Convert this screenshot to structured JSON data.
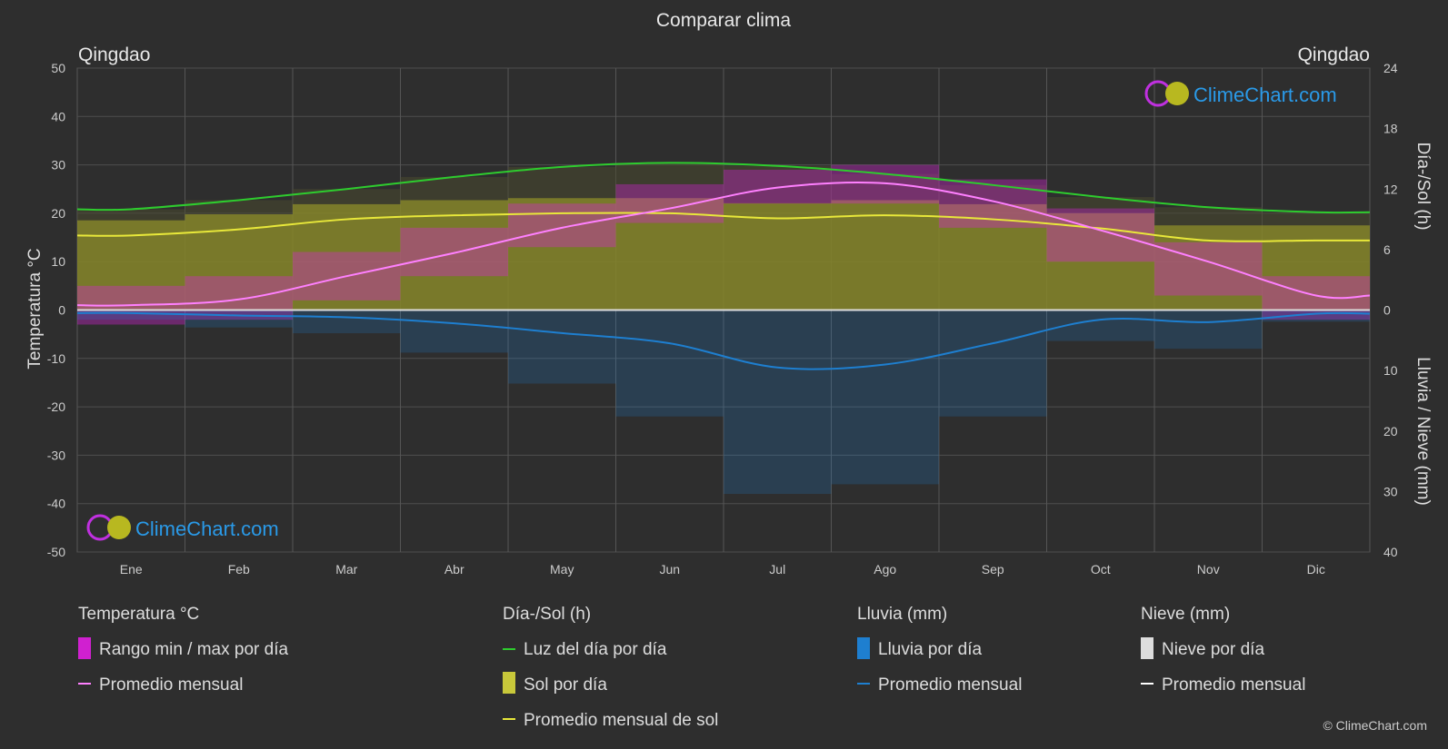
{
  "title": "Comparar clima",
  "location_left": "Qingdao",
  "location_right": "Qingdao",
  "watermark": "ClimeChart.com",
  "copyright": "© ClimeChart.com",
  "axes": {
    "left_label": "Temperatura °C",
    "right_top_label": "Día-/Sol (h)",
    "right_bottom_label": "Lluvia / Nieve (mm)",
    "left_ticks": [
      "50",
      "40",
      "30",
      "20",
      "10",
      "0",
      "-10",
      "-20",
      "-30",
      "-40",
      "-50"
    ],
    "right_top_ticks": [
      "24",
      "18",
      "12",
      "6",
      "0"
    ],
    "right_bottom_ticks": [
      "0",
      "10",
      "20",
      "30",
      "40"
    ]
  },
  "legend": {
    "temp": {
      "header": "Temperatura °C",
      "range": "Rango min / max por día",
      "avg": "Promedio mensual"
    },
    "sun": {
      "header": "Día-/Sol (h)",
      "daylight": "Luz del día por día",
      "sun": "Sol por día",
      "avg": "Promedio mensual de sol"
    },
    "rain": {
      "header": "Lluvia (mm)",
      "rain": "Lluvia por día",
      "avg": "Promedio mensual"
    },
    "snow": {
      "header": "Nieve (mm)",
      "snow": "Nieve por día",
      "avg": "Promedio mensual"
    }
  },
  "colors": {
    "temp_range": "#e020e0",
    "temp_avg": "#ff80ff",
    "daylight": "#2ecc2e",
    "sun_fill": "#8e8e2a",
    "sun_avg": "#e8e83a",
    "rain": "#1e7fd0",
    "snow": "#dddddd"
  },
  "chart_data": {
    "type": "line",
    "months": [
      "Ene",
      "Feb",
      "Mar",
      "Abr",
      "May",
      "Jun",
      "Jul",
      "Ago",
      "Sep",
      "Oct",
      "Nov",
      "Dic"
    ],
    "temp_ylim": [
      -50,
      50
    ],
    "sun_ylim": [
      0,
      24
    ],
    "precip_ylim": [
      0,
      40
    ],
    "series": [
      {
        "name": "Promedio mensual",
        "axis": "temperature",
        "values": [
          1.0,
          2.2,
          7.0,
          11.8,
          17.0,
          21.0,
          25.3,
          26.2,
          22.5,
          16.5,
          10.0,
          3.0
        ]
      },
      {
        "name": "Luz del día por día",
        "axis": "hours",
        "values": [
          10.0,
          10.9,
          12.0,
          13.2,
          14.2,
          14.6,
          14.3,
          13.5,
          12.4,
          11.2,
          10.2,
          9.7
        ]
      },
      {
        "name": "Promedio mensual de sol",
        "axis": "hours",
        "values": [
          7.4,
          8.0,
          9.0,
          9.4,
          9.6,
          9.6,
          9.1,
          9.4,
          9.0,
          8.1,
          6.9,
          6.9
        ]
      },
      {
        "name": "Promedio mensual",
        "axis": "precipitation",
        "values": [
          0.5,
          0.9,
          1.2,
          2.2,
          3.8,
          5.5,
          9.5,
          9.0,
          5.5,
          1.6,
          2.0,
          0.6
        ]
      }
    ],
    "temp_daily_range": {
      "min": [
        -3,
        -2,
        2,
        7,
        13,
        18,
        22,
        22,
        17,
        10,
        3,
        -2
      ],
      "max": [
        5,
        7,
        12,
        17,
        22,
        26,
        29,
        30,
        27,
        21,
        14,
        7
      ]
    }
  }
}
